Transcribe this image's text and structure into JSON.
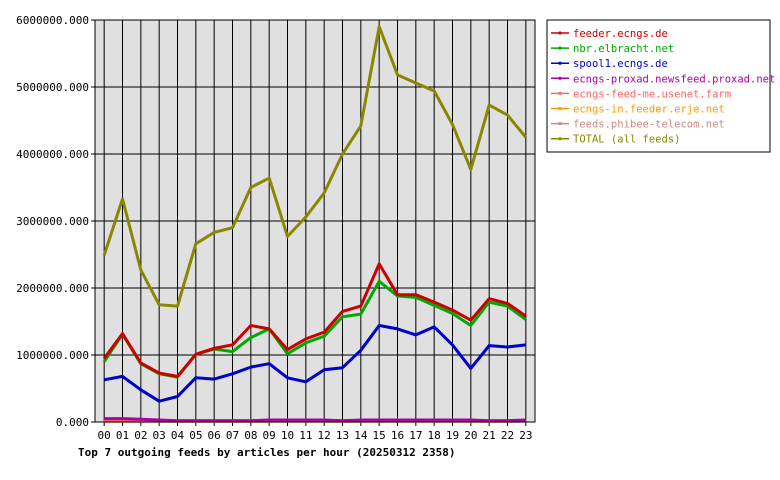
{
  "chart_data": {
    "type": "line",
    "title": "Top 7 outgoing feeds by articles per hour (20250312 2358)",
    "xlabel": "",
    "ylabel": "",
    "categories": [
      "00",
      "01",
      "02",
      "03",
      "04",
      "05",
      "06",
      "07",
      "08",
      "09",
      "10",
      "11",
      "12",
      "13",
      "14",
      "15",
      "16",
      "17",
      "18",
      "19",
      "20",
      "21",
      "22",
      "23"
    ],
    "ylim": [
      0,
      6000000
    ],
    "yticks": [
      "0.000",
      "1000000.000",
      "2000000.000",
      "3000000.000",
      "4000000.000",
      "5000000.000",
      "6000000.000"
    ],
    "grid": true,
    "legend_position": "top-right",
    "series": [
      {
        "name": "feeder.ecngs.de",
        "color": "#cc0000",
        "values": [
          950000,
          1320000,
          880000,
          730000,
          680000,
          1010000,
          1100000,
          1150000,
          1440000,
          1390000,
          1080000,
          1240000,
          1340000,
          1650000,
          1730000,
          2360000,
          1900000,
          1900000,
          1790000,
          1670000,
          1520000,
          1840000,
          1770000,
          1580000
        ]
      },
      {
        "name": "nbr.elbracht.net",
        "color": "#00aa00",
        "values": [
          900000,
          1310000,
          870000,
          720000,
          670000,
          1010000,
          1090000,
          1050000,
          1260000,
          1390000,
          1020000,
          1180000,
          1280000,
          1570000,
          1610000,
          2100000,
          1880000,
          1860000,
          1740000,
          1620000,
          1440000,
          1790000,
          1730000,
          1530000
        ]
      },
      {
        "name": "spool1.ecngs.de",
        "color": "#0000cc",
        "values": [
          630000,
          680000,
          480000,
          310000,
          380000,
          660000,
          640000,
          720000,
          820000,
          870000,
          660000,
          600000,
          780000,
          810000,
          1070000,
          1440000,
          1390000,
          1300000,
          1420000,
          1150000,
          800000,
          1140000,
          1120000,
          1150000
        ]
      },
      {
        "name": "ecngs-proxad.newsfeed.proxad.net",
        "color": "#aa00aa",
        "values": [
          50000,
          50000,
          40000,
          30000,
          20000,
          20000,
          20000,
          20000,
          20000,
          30000,
          30000,
          30000,
          30000,
          20000,
          30000,
          30000,
          30000,
          30000,
          30000,
          30000,
          30000,
          20000,
          20000,
          30000
        ]
      },
      {
        "name": "ecngs-feed-me.usenet.farm",
        "color": "#ff6666",
        "values": [
          20000,
          20000,
          20000,
          20000,
          20000,
          20000,
          20000,
          20000,
          20000,
          20000,
          20000,
          20000,
          20000,
          20000,
          20000,
          20000,
          20000,
          20000,
          20000,
          20000,
          20000,
          20000,
          20000,
          20000
        ]
      },
      {
        "name": "ecngs-in.feeder.erje.net",
        "color": "#ff9900",
        "values": [
          10000,
          10000,
          10000,
          10000,
          10000,
          10000,
          10000,
          10000,
          10000,
          10000,
          10000,
          10000,
          10000,
          10000,
          10000,
          10000,
          10000,
          10000,
          10000,
          10000,
          10000,
          10000,
          10000,
          10000
        ]
      },
      {
        "name": "feeds.phibee-telecom.net",
        "color": "#cc8888",
        "values": [
          20000,
          20000,
          20000,
          20000,
          20000,
          20000,
          20000,
          20000,
          20000,
          20000,
          20000,
          20000,
          20000,
          20000,
          20000,
          20000,
          20000,
          20000,
          20000,
          20000,
          20000,
          20000,
          20000,
          20000
        ]
      },
      {
        "name": "TOTAL (all feeds)",
        "color": "#888800",
        "values": [
          2490000,
          3330000,
          2270000,
          1750000,
          1730000,
          2660000,
          2830000,
          2900000,
          3500000,
          3640000,
          2770000,
          3060000,
          3420000,
          4000000,
          4420000,
          5900000,
          5180000,
          5060000,
          4940000,
          4440000,
          3770000,
          4730000,
          4580000,
          4250000
        ]
      }
    ]
  }
}
